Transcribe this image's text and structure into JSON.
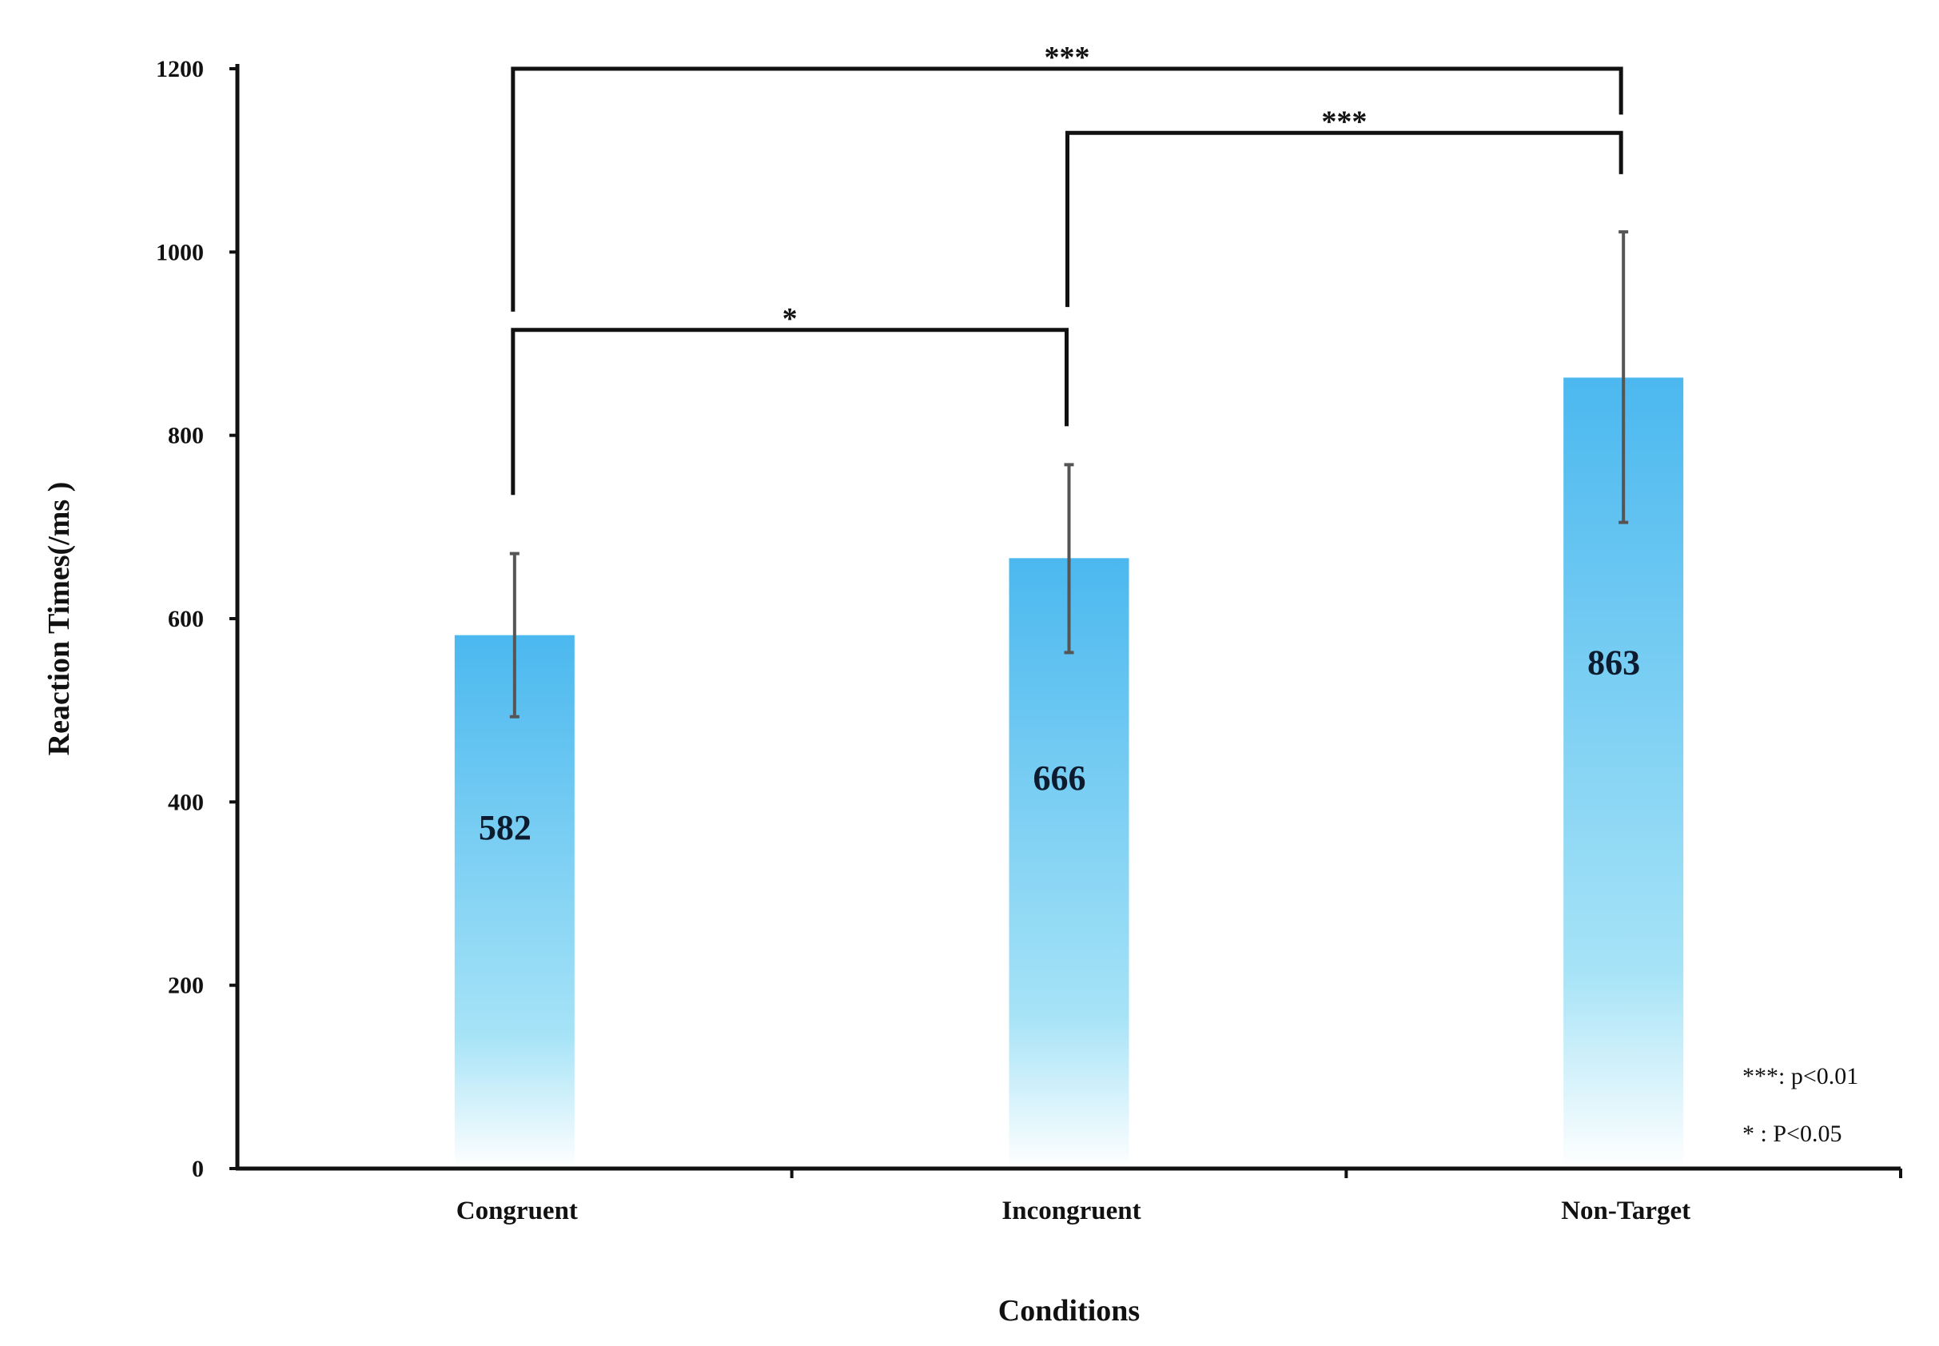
{
  "chart_data": {
    "type": "bar",
    "title": "",
    "xlabel": "Conditions",
    "ylabel": "Reaction Times(/ms )",
    "categories": [
      "Congruent",
      "Incongruent",
      "Non-Target"
    ],
    "values": [
      582,
      666,
      863
    ],
    "value_labels": [
      "582",
      "666",
      "863"
    ],
    "error_bars": [
      {
        "low": 493,
        "high": 671
      },
      {
        "low": 563,
        "high": 768
      },
      {
        "low": 705,
        "high": 1022
      }
    ],
    "ylim": [
      0,
      1200
    ],
    "yticks": [
      0,
      200,
      400,
      600,
      800,
      1000,
      1200
    ],
    "ytick_labels": [
      "0",
      "200",
      "400",
      "600",
      "800",
      "1000",
      "1200"
    ],
    "grid": false,
    "significance": [
      {
        "from": 0,
        "to": 2,
        "label": "***",
        "bracket_y": 1200,
        "left_end": 935,
        "right_end": 1150
      },
      {
        "from": 1,
        "to": 2,
        "label": "***",
        "bracket_y": 1130,
        "left_end": 940,
        "right_end": 1085
      },
      {
        "from": 0,
        "to": 1,
        "label": "*",
        "bracket_y": 915,
        "left_end": 735,
        "right_end": 810
      }
    ],
    "legend": {
      "placement": "bottom-right",
      "entries": [
        "***: p<0.01",
        "*    : P<0.05"
      ]
    },
    "colors": {
      "bar_top": "#4bb8ef",
      "bar_bottom": "#ffffff",
      "error_bar": "#555555",
      "axis": "#111111"
    }
  }
}
